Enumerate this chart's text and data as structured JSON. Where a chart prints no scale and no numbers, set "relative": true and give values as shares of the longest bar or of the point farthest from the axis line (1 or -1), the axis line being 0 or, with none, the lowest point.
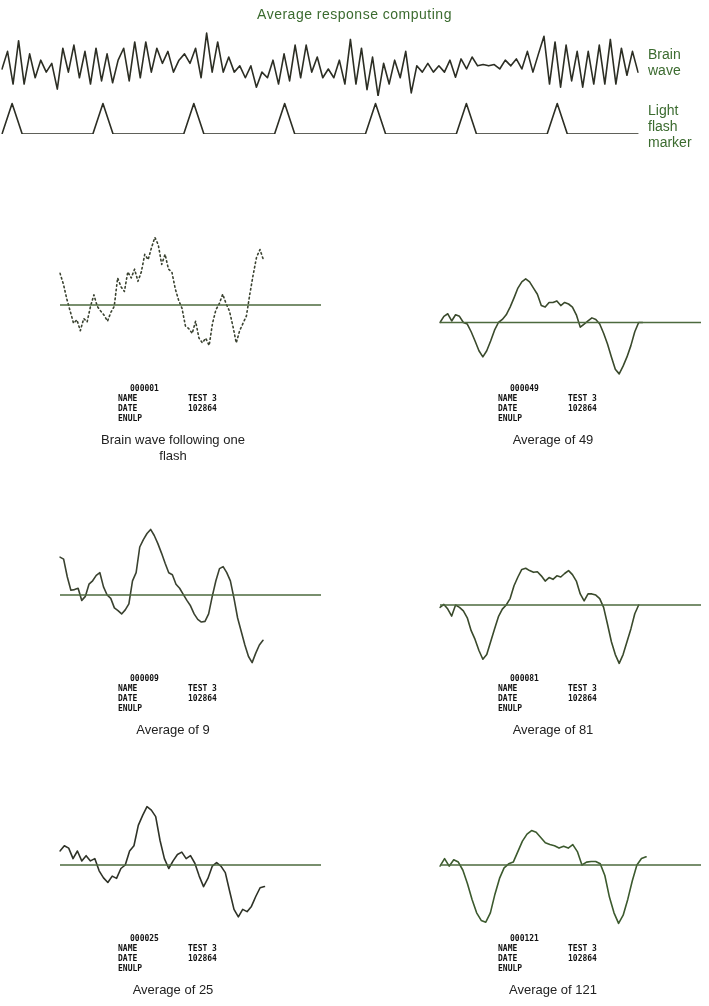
{
  "chart_data": [
    {
      "type": "line",
      "title": "Average response computing",
      "relative": true,
      "categories": [
        null,
        null,
        null,
        null,
        null,
        null,
        null,
        null,
        null,
        null,
        null,
        null,
        null,
        null,
        null,
        null,
        null,
        null,
        null,
        null,
        null,
        null,
        null,
        null,
        null,
        null,
        null,
        null,
        null,
        null,
        null,
        null,
        null,
        null,
        null,
        null,
        null,
        null,
        null,
        null,
        null,
        null,
        null,
        null,
        null,
        null,
        null,
        null,
        null,
        null,
        null,
        null,
        null,
        null,
        null,
        null,
        null,
        null,
        null,
        null,
        null,
        null,
        null,
        null,
        null,
        null,
        null,
        null,
        null,
        null,
        null,
        null,
        null,
        null,
        null,
        null,
        null,
        null,
        null,
        null,
        null,
        null,
        null,
        null,
        null,
        null,
        null,
        null,
        null,
        null,
        null,
        null,
        null,
        null,
        null,
        null,
        null,
        null,
        null,
        null,
        null,
        null,
        null,
        null,
        null,
        null,
        null,
        null,
        null,
        null,
        null,
        null,
        null,
        null,
        null,
        null
      ],
      "series": [
        {
          "name": "Brain wave",
          "color": "#2c2e24",
          "values": [
            0.43,
            0.71,
            0.19,
            0.88,
            0.19,
            0.67,
            0.29,
            0.57,
            0.38,
            0.52,
            0.11,
            0.76,
            0.38,
            0.81,
            0.29,
            0.71,
            0.19,
            0.76,
            0.24,
            0.67,
            0.21,
            0.57,
            0.76,
            0.24,
            0.86,
            0.29,
            0.86,
            0.38,
            0.76,
            0.52,
            0.71,
            0.38,
            0.57,
            0.67,
            0.52,
            0.76,
            0.29,
            1,
            0.38,
            0.86,
            0.38,
            0.62,
            0.38,
            0.48,
            0.29,
            0.48,
            0.14,
            0.38,
            0.29,
            0.57,
            0.19,
            0.67,
            0.24,
            0.81,
            0.29,
            0.81,
            0.38,
            0.62,
            0.29,
            0.43,
            0.29,
            0.57,
            0.19,
            0.9,
            0.19,
            0.76,
            0.1,
            0.62,
            0,
            0.52,
            0.19,
            0.57,
            0.29,
            0.71,
            0.05,
            0.48,
            0.38,
            0.52,
            0.38,
            0.48,
            0.38,
            0.57,
            0.3,
            0.59,
            0.43,
            0.62,
            0.48,
            0.5,
            0.48,
            0.5,
            0.43,
            0.57,
            0.48,
            0.59,
            0.43,
            0.71,
            0.38,
            0.67,
            0.95,
            0.19,
            0.86,
            0.14,
            0.81,
            0.24,
            0.71,
            0.14,
            0.71,
            0.19,
            0.81,
            0.19,
            0.9,
            0.19,
            0.76,
            0.33,
            0.71,
            0.38
          ]
        }
      ]
    },
    {
      "type": "line",
      "relative": true,
      "categories": [
        null,
        null,
        null,
        null,
        null,
        null,
        null,
        null,
        null,
        null,
        null,
        null,
        null,
        null,
        null,
        null,
        null,
        null,
        null,
        null,
        null,
        null,
        null,
        null,
        null,
        null,
        null,
        null,
        null,
        null,
        null,
        null,
        null,
        null,
        null,
        null,
        null,
        null,
        null,
        null,
        null,
        null,
        null,
        null,
        null,
        null,
        null,
        null,
        null,
        null,
        null,
        null,
        null,
        null,
        null,
        null,
        null,
        null,
        null,
        null,
        null,
        null,
        null,
        null
      ],
      "series": [
        {
          "name": "Light flash marker",
          "color": "#2c2e24",
          "values": [
            0,
            1,
            0,
            0,
            0,
            0,
            0,
            0,
            0,
            0,
            1,
            0,
            0,
            0,
            0,
            0,
            0,
            0,
            0,
            1,
            0,
            0,
            0,
            0,
            0,
            0,
            0,
            0,
            1,
            0,
            0,
            0,
            0,
            0,
            0,
            0,
            0,
            1,
            0,
            0,
            0,
            0,
            0,
            0,
            0,
            0,
            1,
            0,
            0,
            0,
            0,
            0,
            0,
            0,
            0,
            1,
            0,
            0,
            0,
            0,
            0,
            0,
            0,
            0
          ]
        }
      ]
    },
    {
      "type": "line",
      "relative": true,
      "line_style": "dotted",
      "ref_lines": [
        {
          "axis": "y",
          "value": 0,
          "color": "#4d6a3e"
        }
      ],
      "xlabel": "Brain wave following one flash",
      "annotations": [
        "000001",
        "NAME",
        "TEST 3",
        "DATE",
        "102864",
        "ENULP"
      ],
      "categories": [
        null,
        null,
        null,
        null,
        null,
        null,
        null,
        null,
        null,
        null,
        null,
        null,
        null,
        null,
        null,
        null,
        null,
        null,
        null,
        null,
        null,
        null,
        null,
        null,
        null,
        null,
        null,
        null,
        null,
        null,
        null,
        null,
        null,
        null,
        null,
        null,
        null,
        null,
        null,
        null,
        null,
        null,
        null,
        null,
        null,
        null,
        null,
        null,
        null,
        null,
        null,
        null,
        null,
        null,
        null,
        null,
        null,
        null,
        null,
        null,
        null,
        null,
        null,
        null,
        null,
        null,
        null,
        null,
        null,
        null,
        null,
        null,
        null,
        null,
        null,
        null,
        null,
        null
      ],
      "series": [
        {
          "color": "#3a4230",
          "values": [
            0.47,
            0.31,
            0.09,
            -0.09,
            -0.27,
            -0.22,
            -0.38,
            -0.2,
            -0.25,
            -0.02,
            0.15,
            -0.02,
            -0.09,
            -0.15,
            -0.24,
            -0.11,
            -0.02,
            0.4,
            0.27,
            0.2,
            0.49,
            0.4,
            0.53,
            0.35,
            0.49,
            0.75,
            0.67,
            0.85,
            1,
            0.89,
            0.6,
            0.75,
            0.53,
            0.49,
            0.24,
            0.07,
            -0.05,
            -0.31,
            -0.35,
            -0.42,
            -0.24,
            -0.49,
            -0.56,
            -0.49,
            -0.6,
            -0.27,
            -0.07,
            0.02,
            0.16,
            0.02,
            -0.09,
            -0.31,
            -0.56,
            -0.38,
            -0.27,
            -0.16,
            0.16,
            0.45,
            0.71,
            0.82,
            0.67,
            null,
            null,
            null,
            null,
            null,
            null,
            null,
            null,
            null,
            null,
            null,
            null,
            null,
            null,
            null,
            null,
            null
          ]
        }
      ]
    },
    {
      "type": "line",
      "relative": true,
      "ref_lines": [
        {
          "axis": "y",
          "value": 0,
          "color": "#4d6a3e"
        }
      ],
      "xlabel": "Average of 49",
      "annotations": [
        "000049",
        "NAME",
        "TEST 3",
        "DATE",
        "102864",
        "ENULP"
      ],
      "categories": [
        null,
        null,
        null,
        null,
        null,
        null,
        null,
        null,
        null,
        null,
        null,
        null,
        null,
        null,
        null,
        null,
        null,
        null,
        null,
        null,
        null,
        null,
        null,
        null,
        null,
        null,
        null,
        null,
        null,
        null,
        null,
        null,
        null,
        null,
        null,
        null,
        null,
        null,
        null,
        null,
        null,
        null,
        null,
        null,
        null,
        null,
        null,
        null,
        null,
        null,
        null,
        null,
        null,
        null,
        null,
        null,
        null,
        null,
        null,
        null,
        null,
        null,
        null,
        null,
        null,
        null,
        null,
        null
      ],
      "series": [
        {
          "color": "#3a4a2c",
          "values": [
            0,
            0.12,
            0.17,
            0.03,
            0.15,
            0.12,
            0,
            -0.03,
            -0.18,
            -0.36,
            -0.55,
            -0.67,
            -0.55,
            -0.36,
            -0.15,
            0,
            0.06,
            0.15,
            0.3,
            0.48,
            0.67,
            0.79,
            0.85,
            0.79,
            0.67,
            0.55,
            0.33,
            0.3,
            0.39,
            0.39,
            0.42,
            0.33,
            0.39,
            0.36,
            0.3,
            0.15,
            -0.09,
            -0.03,
            0.03,
            0.09,
            0.06,
            -0.03,
            -0.21,
            -0.42,
            -0.67,
            -0.91,
            -1,
            -0.85,
            -0.67,
            -0.45,
            -0.18,
            0,
            0,
            null,
            null,
            null,
            null,
            null,
            null,
            null,
            null,
            null,
            null,
            null,
            null,
            null,
            null,
            null
          ]
        }
      ]
    },
    {
      "type": "line",
      "relative": true,
      "ref_lines": [
        {
          "axis": "y",
          "value": 0,
          "color": "#4d6a3e"
        }
      ],
      "xlabel": "Average of 9",
      "annotations": [
        "000009",
        "NAME",
        "TEST 3",
        "DATE",
        "102864",
        "ENULP"
      ],
      "categories": [
        null,
        null,
        null,
        null,
        null,
        null,
        null,
        null,
        null,
        null,
        null,
        null,
        null,
        null,
        null,
        null,
        null,
        null,
        null,
        null,
        null,
        null,
        null,
        null,
        null,
        null,
        null,
        null,
        null,
        null,
        null,
        null,
        null,
        null,
        null,
        null,
        null,
        null,
        null,
        null,
        null,
        null,
        null,
        null,
        null,
        null,
        null,
        null,
        null,
        null,
        null,
        null,
        null,
        null,
        null,
        null,
        null,
        null,
        null,
        null,
        null,
        null,
        null,
        null,
        null,
        null,
        null,
        null,
        null,
        null,
        null,
        null,
        null
      ],
      "series": [
        {
          "color": "#3a4230",
          "values": [
            0.56,
            0.53,
            0.27,
            0.07,
            0.08,
            0.1,
            -0.08,
            -0.02,
            0.16,
            0.21,
            0.29,
            0.33,
            0.12,
            0,
            -0.05,
            -0.19,
            -0.23,
            -0.28,
            -0.22,
            -0.13,
            0.21,
            0.33,
            0.71,
            0.82,
            0.91,
            0.97,
            0.88,
            0.76,
            0.62,
            0.47,
            0.33,
            0.3,
            0.16,
            0.1,
            0.01,
            -0.08,
            -0.16,
            -0.28,
            -0.36,
            -0.4,
            -0.39,
            -0.28,
            -0.02,
            0.21,
            0.39,
            0.42,
            0.33,
            0.21,
            -0.05,
            -0.34,
            -0.54,
            -0.74,
            -0.91,
            -1,
            -0.86,
            -0.74,
            -0.67,
            null,
            null,
            null,
            null,
            null,
            null,
            null,
            null,
            null,
            null,
            null,
            null,
            null,
            null,
            null,
            null
          ]
        }
      ]
    },
    {
      "type": "line",
      "relative": true,
      "ref_lines": [
        {
          "axis": "y",
          "value": 0,
          "color": "#4d6a3e"
        }
      ],
      "xlabel": "Average of 81",
      "annotations": [
        "000081",
        "NAME",
        "TEST 3",
        "DATE",
        "102864",
        "ENULP"
      ],
      "categories": [
        null,
        null,
        null,
        null,
        null,
        null,
        null,
        null,
        null,
        null,
        null,
        null,
        null,
        null,
        null,
        null,
        null,
        null,
        null,
        null,
        null,
        null,
        null,
        null,
        null,
        null,
        null,
        null,
        null,
        null,
        null,
        null,
        null,
        null,
        null,
        null,
        null,
        null,
        null,
        null,
        null,
        null,
        null,
        null,
        null,
        null,
        null,
        null,
        null,
        null,
        null,
        null,
        null,
        null,
        null,
        null,
        null,
        null,
        null,
        null,
        null,
        null,
        null,
        null,
        null,
        null,
        null,
        null
      ],
      "series": [
        {
          "color": "#3a4a2c",
          "values": [
            -0.04,
            0.01,
            -0.07,
            -0.19,
            0,
            -0.04,
            -0.1,
            -0.22,
            -0.44,
            -0.59,
            -0.78,
            -0.93,
            -0.85,
            -0.63,
            -0.41,
            -0.2,
            -0.07,
            0,
            0.11,
            0.33,
            0.48,
            0.61,
            0.63,
            0.59,
            0.56,
            0.57,
            0.5,
            0.41,
            0.47,
            0.44,
            0.5,
            0.48,
            0.54,
            0.59,
            0.52,
            0.41,
            0.19,
            0.07,
            0.19,
            0.19,
            0.17,
            0.11,
            -0.04,
            -0.33,
            -0.63,
            -0.85,
            -1,
            -0.85,
            -0.63,
            -0.41,
            -0.15,
            0,
            null,
            null,
            null,
            null,
            null,
            null,
            null,
            null,
            null,
            null,
            null,
            null,
            null,
            null,
            null,
            null
          ]
        }
      ]
    },
    {
      "type": "line",
      "relative": true,
      "ref_lines": [
        {
          "axis": "y",
          "value": 0,
          "color": "#4d6a3e"
        }
      ],
      "xlabel": "Average of 25",
      "annotations": [
        "000025",
        "NAME",
        "TEST 3",
        "DATE",
        "102864",
        "ENULP"
      ],
      "categories": [
        null,
        null,
        null,
        null,
        null,
        null,
        null,
        null,
        null,
        null,
        null,
        null,
        null,
        null,
        null,
        null,
        null,
        null,
        null,
        null,
        null,
        null,
        null,
        null,
        null,
        null,
        null,
        null,
        null,
        null,
        null,
        null,
        null,
        null,
        null,
        null,
        null,
        null,
        null,
        null,
        null,
        null,
        null,
        null,
        null,
        null,
        null,
        null,
        null,
        null,
        null,
        null,
        null,
        null,
        null,
        null,
        null,
        null,
        null,
        null,
        null
      ],
      "series": [
        {
          "color": "#2f3328",
          "values": [
            0.24,
            0.33,
            0.29,
            0.11,
            0.24,
            0.07,
            0.16,
            0.07,
            0.11,
            -0.1,
            -0.22,
            -0.3,
            -0.19,
            -0.23,
            -0.06,
            0,
            0.24,
            0.33,
            0.68,
            0.85,
            1,
            0.94,
            0.83,
            0.42,
            0.11,
            -0.06,
            0.07,
            0.18,
            0.22,
            0.11,
            0.16,
            0.03,
            -0.19,
            -0.37,
            -0.23,
            -0.02,
            0.04,
            -0.02,
            -0.13,
            -0.45,
            -0.76,
            -0.89,
            -0.76,
            -0.8,
            -0.71,
            -0.54,
            -0.39,
            -0.37,
            null,
            null,
            null,
            null,
            null,
            null,
            null,
            null,
            null,
            null,
            null,
            null,
            null
          ]
        }
      ]
    },
    {
      "type": "line",
      "relative": true,
      "ref_lines": [
        {
          "axis": "y",
          "value": 0,
          "color": "#4d6a3e"
        }
      ],
      "xlabel": "Average of 121",
      "annotations": [
        "000121",
        "NAME",
        "TEST 3",
        "DATE",
        "102864",
        "ENULP"
      ],
      "categories": [
        null,
        null,
        null,
        null,
        null,
        null,
        null,
        null,
        null,
        null,
        null,
        null,
        null,
        null,
        null,
        null,
        null,
        null,
        null,
        null,
        null,
        null,
        null,
        null,
        null,
        null,
        null,
        null,
        null,
        null,
        null,
        null,
        null,
        null,
        null,
        null,
        null,
        null,
        null,
        null,
        null,
        null,
        null,
        null,
        null,
        null,
        null,
        null,
        null,
        null,
        null,
        null,
        null,
        null,
        null,
        null,
        null,
        null
      ],
      "series": [
        {
          "color": "#3c5a2e",
          "values": [
            -0.02,
            0.11,
            -0.02,
            0.09,
            0.05,
            -0.09,
            -0.32,
            -0.59,
            -0.82,
            -0.95,
            -0.98,
            -0.82,
            -0.5,
            -0.23,
            -0.05,
            0.02,
            0.05,
            0.23,
            0.41,
            0.53,
            0.59,
            0.56,
            0.47,
            0.38,
            0.35,
            0.33,
            0.29,
            0.32,
            0.29,
            0.35,
            0.23,
            0,
            0.05,
            0.06,
            0.06,
            0.02,
            -0.18,
            -0.55,
            -0.82,
            -1,
            -0.86,
            -0.59,
            -0.27,
            0,
            0.11,
            0.14,
            null,
            null,
            null,
            null,
            null,
            null,
            null,
            null,
            null,
            null,
            null,
            null
          ]
        }
      ]
    }
  ]
}
